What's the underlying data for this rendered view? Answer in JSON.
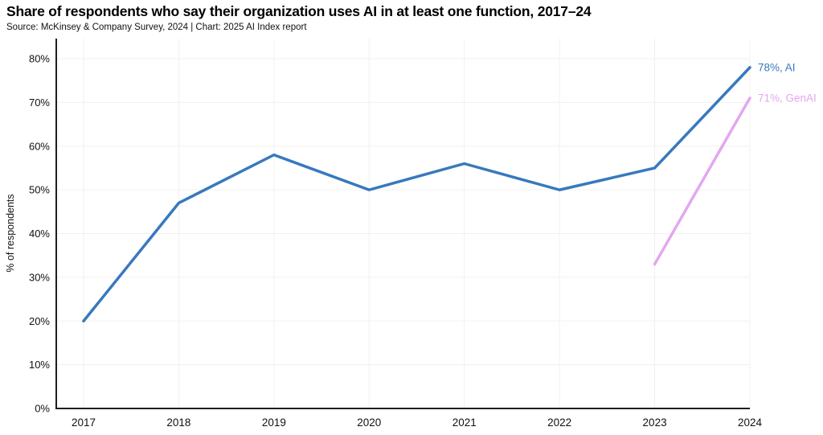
{
  "chart_data": {
    "type": "line",
    "title": "Share of respondents who say their organization uses AI in at least one function, 2017–24",
    "source": "Source: McKinsey & Company Survey, 2024 | Chart: 2025 AI Index report",
    "ylabel": "% of respondents",
    "x": [
      "2017",
      "2018",
      "2019",
      "2020",
      "2021",
      "2022",
      "2023",
      "2024"
    ],
    "y_ticks": [
      0,
      10,
      20,
      30,
      40,
      50,
      60,
      70,
      80
    ],
    "y_tick_suffix": "%",
    "ylim": [
      0,
      80
    ],
    "grid": true,
    "legend_position": "end-of-line-labels",
    "colors": {
      "axis": "#1e1e1e",
      "gridline": "#f3f0ee",
      "text": "#111111"
    },
    "series": [
      {
        "name": "AI",
        "color": "#3779be",
        "values": [
          20,
          47,
          58,
          50,
          56,
          50,
          55,
          78
        ],
        "end_label": "78%, AI"
      },
      {
        "name": "GenAI",
        "color": "#e2a8f0",
        "values": [
          null,
          null,
          null,
          null,
          null,
          null,
          33,
          71
        ],
        "end_label": "71%, GenAI"
      }
    ]
  }
}
